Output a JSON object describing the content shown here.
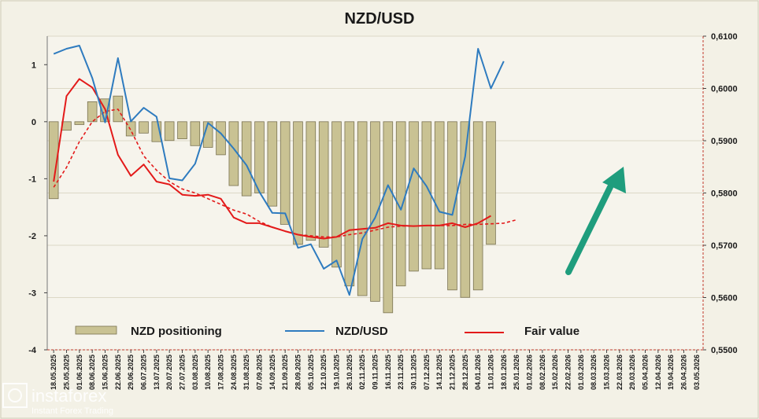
{
  "chart_data": {
    "type": "bar",
    "title": "NZD/USD",
    "x": [
      "18.05.2025",
      "25.05.2025",
      "01.06.2025",
      "08.06.2025",
      "15.06.2025",
      "22.06.2025",
      "29.06.2025",
      "06.07.2025",
      "13.07.2025",
      "20.07.2025",
      "27.07.2025",
      "03.08.2025",
      "10.08.2025",
      "17.08.2025",
      "24.08.2025",
      "31.08.2025",
      "07.09.2025",
      "14.09.2025",
      "21.09.2025",
      "28.09.2025",
      "05.10.2025",
      "12.10.2025",
      "19.10.2025",
      "26.10.2025",
      "02.11.2025",
      "09.11.2025",
      "16.11.2025",
      "23.11.2025",
      "30.11.2025",
      "07.12.2025",
      "14.12.2025",
      "21.12.2025",
      "28.12.2025",
      "04.01.2026",
      "11.01.2026",
      "18.01.2026",
      "25.01.2026",
      "01.02.2026",
      "08.02.2026",
      "15.02.2026",
      "22.02.2026",
      "01.03.2026",
      "08.03.2026",
      "15.03.2026",
      "22.03.2026",
      "29.03.2026",
      "05.04.2026",
      "12.04.2026",
      "19.04.2026",
      "26.04.2026",
      "03.05.2026"
    ],
    "xtick_labels": [
      "18.05.2025",
      "25.05.2025",
      "01.06.2025",
      "08.06.2025",
      "15.06.2025",
      "22.06.2025",
      "29.06.2025",
      "06.07.2025",
      "13.07.2025",
      "20.07.2025",
      "27.07.2025",
      "03.08.2025",
      "10.08.2025",
      "17.08.2025",
      "24.08.2025",
      "31.08.2025",
      "07.09.2025",
      "14.09.2025",
      "21.09.2025",
      "28.09.2025",
      "05.10.2025",
      "12.10.2025",
      "19.10.2025",
      "26.10.2025",
      "02.11.2025",
      "09.11.2025",
      "16.11.2025",
      "23.11.2025",
      "30.11.2025",
      "07.12.2025",
      "14.12.2025",
      "21.12.2025",
      "28.12.2025",
      "04.01.2026",
      "11.01.2026",
      "18.01.2026",
      "25.01.2026",
      "01.02.2026",
      "08.02.2026",
      "15.02.2026",
      "22.02.2026",
      "01.03.2026",
      "08.03.2026",
      "15.03.2026",
      "22.03.2026",
      "29.03.2026",
      "05.04.2026",
      "12.04.2026",
      "19.04.2026",
      "26.04.2026",
      "03.05.2026"
    ],
    "y_left": {
      "ylim": [
        -4,
        1.5
      ],
      "ticks": [
        "1",
        "0",
        "-1",
        "-2",
        "-3",
        "-4"
      ]
    },
    "y_right": {
      "ylim": [
        0.55,
        0.61
      ],
      "ticks": [
        "0,6100",
        "0,6000",
        "0,5900",
        "0,5800",
        "0,5700",
        "0,5600",
        "0,5500"
      ]
    },
    "series": [
      {
        "name": "NZD positioning",
        "type": "bar",
        "axis": "left",
        "values": [
          -1.35,
          -0.15,
          -0.05,
          0.35,
          0.4,
          0.45,
          -0.25,
          -0.2,
          -0.35,
          -0.33,
          -0.3,
          -0.42,
          -0.45,
          -0.58,
          -1.12,
          -1.3,
          -1.25,
          -1.48,
          -1.8,
          -2.15,
          -2.08,
          -2.2,
          -2.55,
          -2.88,
          -3.05,
          -3.15,
          -3.35,
          -2.88,
          -2.62,
          -2.58,
          -2.58,
          -2.95,
          -3.08,
          -2.95,
          -2.15,
          null,
          null,
          null,
          null,
          null,
          null,
          null,
          null,
          null,
          null,
          null,
          null,
          null,
          null,
          null,
          null
        ]
      },
      {
        "name": "NZD/USD",
        "type": "line",
        "axis": "right",
        "values": [
          0.6066,
          0.6076,
          0.6082,
          0.602,
          0.5935,
          0.6058,
          0.5937,
          0.5963,
          0.5946,
          0.5828,
          0.5824,
          0.5856,
          0.5934,
          0.5914,
          0.5885,
          0.5853,
          0.5802,
          0.5762,
          0.5761,
          0.5695,
          0.5702,
          0.5655,
          0.5671,
          0.5605,
          0.5712,
          0.5753,
          0.5815,
          0.5768,
          0.5847,
          0.5813,
          0.5764,
          0.5758,
          0.587,
          0.6076,
          0.6,
          0.6052,
          null,
          null,
          null,
          null,
          null,
          null,
          null,
          null,
          null,
          null,
          null,
          null,
          null,
          null,
          null
        ]
      },
      {
        "name": "Fair value",
        "type": "line",
        "axis": "left",
        "values": [
          -1.05,
          0.45,
          0.75,
          0.6,
          0.22,
          -0.58,
          -0.95,
          -0.75,
          -1.05,
          -1.1,
          -1.28,
          -1.3,
          -1.28,
          -1.35,
          -1.68,
          -1.78,
          -1.78,
          -1.85,
          -1.92,
          -1.98,
          -2.02,
          -2.05,
          -2.02,
          -1.9,
          -1.88,
          -1.86,
          -1.78,
          -1.82,
          -1.83,
          -1.82,
          -1.82,
          -1.78,
          -1.85,
          -1.78,
          -1.65,
          null,
          null,
          null,
          null,
          null,
          null,
          null,
          null,
          null,
          null,
          null,
          null,
          null,
          null,
          null,
          null
        ]
      },
      {
        "name": "Fair value (trend)",
        "type": "line",
        "style": "dashed",
        "axis": "left",
        "values": [
          -1.15,
          -0.8,
          -0.35,
          0.0,
          0.18,
          0.22,
          -0.15,
          -0.6,
          -0.85,
          -1.05,
          -1.18,
          -1.25,
          -1.35,
          -1.45,
          -1.55,
          -1.62,
          -1.75,
          -1.85,
          -1.92,
          -1.98,
          -2.0,
          -2.02,
          -2.02,
          -1.98,
          -1.95,
          -1.9,
          -1.85,
          -1.83,
          -1.83,
          -1.82,
          -1.82,
          -1.82,
          -1.8,
          -1.8,
          -1.79,
          -1.78,
          -1.72,
          null,
          null,
          null,
          null,
          null,
          null,
          null,
          null,
          null,
          null,
          null,
          null,
          null,
          null
        ]
      }
    ],
    "legend": [
      {
        "label": "NZD positioning",
        "color": "#c9c293"
      },
      {
        "label": "NZD/USD",
        "color": "#2e7bbf"
      },
      {
        "label": "Fair value",
        "color": "#e31a1a"
      }
    ],
    "colors": {
      "bar": "#c9c293",
      "bar_edge": "#7a7352",
      "nzdusd": "#2e7bbf",
      "fair": "#e31a1a",
      "arrow": "#1f9d7d",
      "plot_bg": "#f6f4ec",
      "page_bg": "#f3f1e6"
    },
    "grid": true,
    "legend_position": "bottom-left"
  },
  "watermark": {
    "brand": "instaforex",
    "tagline": "Instant Forex Trading"
  }
}
